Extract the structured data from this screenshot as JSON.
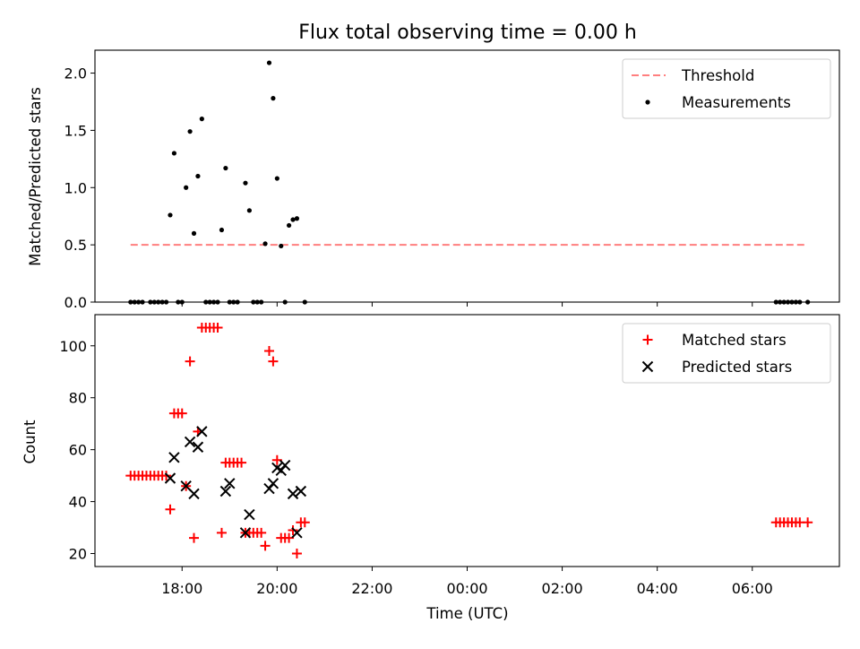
{
  "figure": {
    "title": "Flux total observing time = 0.00 h",
    "xlabel": "Time (UTC)"
  },
  "chart_data": [
    {
      "type": "scatter",
      "panel": "top",
      "title": "Flux total observing time = 0.00 h",
      "xlabel": "",
      "ylabel": "Matched/Predicted stars",
      "xlim": [
        "16:10",
        "07:50"
      ],
      "ylim": [
        0,
        2.2
      ],
      "yticks": [
        0.0,
        0.5,
        1.0,
        1.5,
        2.0
      ],
      "ytick_labels": [
        "0.0",
        "0.5",
        "1.0",
        "1.5",
        "2.0"
      ],
      "legend_position": "top-right",
      "grid": false,
      "series": [
        {
          "name": "Threshold",
          "style": "dashed-line",
          "color": "#ff7f7f",
          "points": [
            [
              "16:55",
              0.5
            ],
            [
              "07:10",
              0.5
            ]
          ]
        },
        {
          "name": "Measurements",
          "style": "dot",
          "color": "#000000",
          "points": [
            [
              "16:55",
              0.0
            ],
            [
              "17:00",
              0.0
            ],
            [
              "17:05",
              0.0
            ],
            [
              "17:10",
              0.0
            ],
            [
              "17:20",
              0.0
            ],
            [
              "17:25",
              0.0
            ],
            [
              "17:30",
              0.0
            ],
            [
              "17:35",
              0.0
            ],
            [
              "17:40",
              0.0
            ],
            [
              "17:45",
              0.76
            ],
            [
              "17:50",
              1.3
            ],
            [
              "17:55",
              0.0
            ],
            [
              "18:00",
              0.0
            ],
            [
              "18:05",
              1.0
            ],
            [
              "18:10",
              1.49
            ],
            [
              "18:15",
              0.6
            ],
            [
              "18:20",
              1.1
            ],
            [
              "18:25",
              1.6
            ],
            [
              "18:30",
              0.0
            ],
            [
              "18:35",
              0.0
            ],
            [
              "18:40",
              0.0
            ],
            [
              "18:45",
              0.0
            ],
            [
              "18:50",
              0.63
            ],
            [
              "18:55",
              1.17
            ],
            [
              "19:00",
              0.0
            ],
            [
              "19:05",
              0.0
            ],
            [
              "19:10",
              0.0
            ],
            [
              "19:20",
              1.04
            ],
            [
              "19:25",
              0.8
            ],
            [
              "19:30",
              0.0
            ],
            [
              "19:35",
              0.0
            ],
            [
              "19:40",
              0.0
            ],
            [
              "19:45",
              0.51
            ],
            [
              "19:50",
              2.09
            ],
            [
              "19:55",
              1.78
            ],
            [
              "20:00",
              1.08
            ],
            [
              "20:05",
              0.49
            ],
            [
              "20:10",
              0.0
            ],
            [
              "20:15",
              0.67
            ],
            [
              "20:20",
              0.72
            ],
            [
              "20:25",
              0.73
            ],
            [
              "20:35",
              0.0
            ],
            [
              "06:30",
              0.0
            ],
            [
              "06:35",
              0.0
            ],
            [
              "06:40",
              0.0
            ],
            [
              "06:45",
              0.0
            ],
            [
              "06:50",
              0.0
            ],
            [
              "06:55",
              0.0
            ],
            [
              "07:00",
              0.0
            ],
            [
              "07:10",
              0.0
            ]
          ]
        }
      ]
    },
    {
      "type": "scatter",
      "panel": "bottom",
      "title": "",
      "xlabel": "Time (UTC)",
      "ylabel": "Count",
      "xlim": [
        "16:10",
        "07:50"
      ],
      "ylim": [
        15,
        112
      ],
      "yticks": [
        20,
        40,
        60,
        80,
        100
      ],
      "ytick_labels": [
        "20",
        "40",
        "60",
        "80",
        "100"
      ],
      "xticks": [
        "18:00",
        "20:00",
        "22:00",
        "00:00",
        "02:00",
        "04:00",
        "06:00"
      ],
      "xtick_labels": [
        "18:00",
        "20:00",
        "22:00",
        "00:00",
        "02:00",
        "04:00",
        "06:00"
      ],
      "legend_position": "top-right",
      "grid": false,
      "series": [
        {
          "name": "Matched stars",
          "style": "plus",
          "color": "#ff0000",
          "points": [
            [
              "16:55",
              50
            ],
            [
              "17:00",
              50
            ],
            [
              "17:05",
              50
            ],
            [
              "17:10",
              50
            ],
            [
              "17:15",
              50
            ],
            [
              "17:20",
              50
            ],
            [
              "17:25",
              50
            ],
            [
              "17:30",
              50
            ],
            [
              "17:35",
              50
            ],
            [
              "17:40",
              50
            ],
            [
              "17:45",
              37
            ],
            [
              "17:50",
              74
            ],
            [
              "17:55",
              74
            ],
            [
              "18:00",
              74
            ],
            [
              "18:05",
              46
            ],
            [
              "18:10",
              94
            ],
            [
              "18:15",
              26
            ],
            [
              "18:20",
              67
            ],
            [
              "18:25",
              107
            ],
            [
              "18:30",
              107
            ],
            [
              "18:35",
              107
            ],
            [
              "18:40",
              107
            ],
            [
              "18:45",
              107
            ],
            [
              "18:50",
              28
            ],
            [
              "18:55",
              55
            ],
            [
              "19:00",
              55
            ],
            [
              "19:05",
              55
            ],
            [
              "19:10",
              55
            ],
            [
              "19:15",
              55
            ],
            [
              "19:20",
              28
            ],
            [
              "19:25",
              28
            ],
            [
              "19:30",
              28
            ],
            [
              "19:35",
              28
            ],
            [
              "19:40",
              28
            ],
            [
              "19:45",
              23
            ],
            [
              "19:50",
              98
            ],
            [
              "19:55",
              94
            ],
            [
              "20:00",
              56
            ],
            [
              "20:05",
              26
            ],
            [
              "20:10",
              26
            ],
            [
              "20:15",
              26
            ],
            [
              "20:20",
              29
            ],
            [
              "20:25",
              20
            ],
            [
              "20:30",
              32
            ],
            [
              "20:35",
              32
            ],
            [
              "06:30",
              32
            ],
            [
              "06:35",
              32
            ],
            [
              "06:40",
              32
            ],
            [
              "06:45",
              32
            ],
            [
              "06:50",
              32
            ],
            [
              "06:55",
              32
            ],
            [
              "07:00",
              32
            ],
            [
              "07:10",
              32
            ]
          ]
        },
        {
          "name": "Predicted stars",
          "style": "x",
          "color": "#000000",
          "points": [
            [
              "17:45",
              49
            ],
            [
              "17:50",
              57
            ],
            [
              "18:05",
              46
            ],
            [
              "18:10",
              63
            ],
            [
              "18:15",
              43
            ],
            [
              "18:20",
              61
            ],
            [
              "18:25",
              67
            ],
            [
              "18:55",
              44
            ],
            [
              "19:00",
              47
            ],
            [
              "19:20",
              28
            ],
            [
              "19:25",
              35
            ],
            [
              "19:50",
              45
            ],
            [
              "19:55",
              47
            ],
            [
              "20:00",
              53
            ],
            [
              "20:05",
              52
            ],
            [
              "20:10",
              54
            ],
            [
              "20:20",
              43
            ],
            [
              "20:25",
              28
            ],
            [
              "20:30",
              44
            ]
          ]
        }
      ]
    }
  ]
}
